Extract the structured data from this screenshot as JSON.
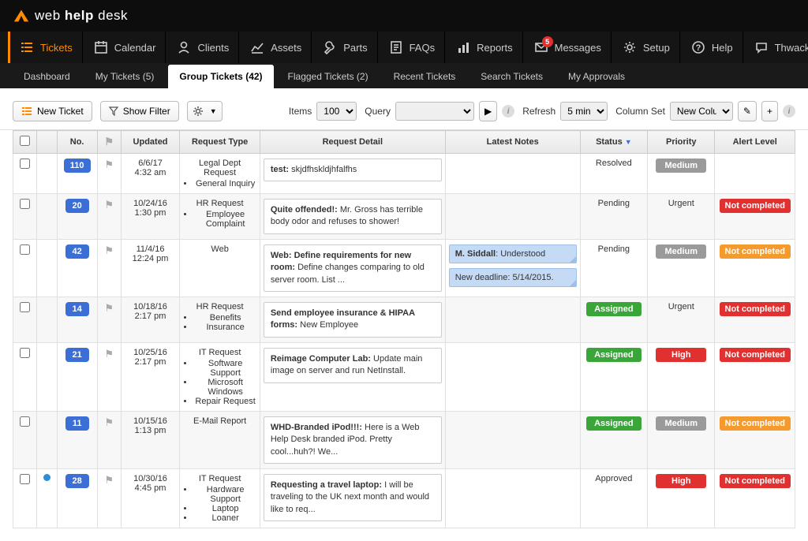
{
  "brand": {
    "name_a": "web",
    "name_b": "help",
    "name_c": "desk"
  },
  "nav": [
    {
      "label": "Tickets",
      "icon": "list",
      "active": true
    },
    {
      "label": "Calendar",
      "icon": "calendar"
    },
    {
      "label": "Clients",
      "icon": "user"
    },
    {
      "label": "Assets",
      "icon": "chart"
    },
    {
      "label": "Parts",
      "icon": "wrench"
    },
    {
      "label": "FAQs",
      "icon": "faq"
    },
    {
      "label": "Reports",
      "icon": "bars"
    },
    {
      "label": "Messages",
      "icon": "mail",
      "badge": "5"
    },
    {
      "label": "Setup",
      "icon": "gear"
    },
    {
      "label": "Help",
      "icon": "help"
    },
    {
      "label": "Thwack",
      "icon": "bubble"
    }
  ],
  "subnav": [
    {
      "label": "Dashboard"
    },
    {
      "label": "My Tickets (5)"
    },
    {
      "label": "Group Tickets (42)",
      "active": true
    },
    {
      "label": "Flagged Tickets (2)"
    },
    {
      "label": "Recent Tickets"
    },
    {
      "label": "Search Tickets"
    },
    {
      "label": "My Approvals"
    }
  ],
  "toolbar": {
    "new_ticket": "New Ticket",
    "show_filter": "Show Filter",
    "items_label": "Items",
    "items_value": "100",
    "query_label": "Query",
    "refresh_label": "Refresh",
    "refresh_value": "5 min",
    "columnset_label": "Column Set",
    "columnset_value": "New Colu"
  },
  "columns": [
    "",
    "",
    "No.",
    "",
    "Updated",
    "Request Type",
    "Request Detail",
    "Latest Notes",
    "Status",
    "Priority",
    "Alert Level"
  ],
  "colors": {
    "assigned": "#3aa63a",
    "medium": "#9a9a9a",
    "high": "#e03030",
    "urgent_text": "#333",
    "notcompleted_red": "#e03030",
    "notcompleted_orange": "#f59b2e"
  },
  "rows": [
    {
      "no": "110",
      "updated_d": "6/6/17",
      "updated_t": "4:32 am",
      "type": "Legal Dept Request",
      "type_items": [
        "General Inquiry"
      ],
      "detail_b": "test:",
      "detail_t": " skjdfhskldjhfalfhs",
      "notes": [],
      "status": "Resolved",
      "status_type": "text",
      "priority": "Medium",
      "priority_color": "#9a9a9a",
      "alert": ""
    },
    {
      "no": "20",
      "updated_d": "10/24/16",
      "updated_t": "1:30 pm",
      "type": "HR Request",
      "type_items": [
        "Employee Complaint"
      ],
      "detail_b": "Quite offended!:",
      "detail_t": " Mr. Gross has terrible body odor and refuses to shower!",
      "notes": [],
      "status": "Pending",
      "status_type": "text",
      "priority": "Urgent",
      "priority_text": true,
      "alert": "Not completed",
      "alert_color": "#e03030"
    },
    {
      "no": "42",
      "updated_d": "11/4/16",
      "updated_t": "12:24 pm",
      "type": "Web",
      "type_items": [],
      "detail_b": "Web: Define requirements for new room:",
      "detail_t": " Define changes comparing to old server room. List ...",
      "notes": [
        {
          "b": "M. Siddall",
          "t": ": Understood"
        },
        {
          "b": "",
          "t": "New deadline: 5/14/2015."
        }
      ],
      "status": "Pending",
      "status_type": "text",
      "priority": "Medium",
      "priority_color": "#9a9a9a",
      "alert": "Not completed",
      "alert_color": "#f59b2e"
    },
    {
      "no": "14",
      "updated_d": "10/18/16",
      "updated_t": "2:17 pm",
      "type": "HR Request",
      "type_items": [
        "Benefits",
        "Insurance"
      ],
      "detail_b": "Send employee insurance & HIPAA forms:",
      "detail_t": " New Employee",
      "notes": [],
      "status": "Assigned",
      "status_type": "pill",
      "status_color": "#3aa63a",
      "priority": "Urgent",
      "priority_text": true,
      "alert": "Not completed",
      "alert_color": "#e03030"
    },
    {
      "no": "21",
      "updated_d": "10/25/16",
      "updated_t": "2:17 pm",
      "type": "IT Request",
      "type_items": [
        "Software Support",
        "Microsoft Windows",
        "Repair Request"
      ],
      "detail_b": "Reimage Computer Lab:",
      "detail_t": " Update main image on server and run NetInstall.",
      "notes": [],
      "status": "Assigned",
      "status_type": "pill",
      "status_color": "#3aa63a",
      "priority": "High",
      "priority_color": "#e03030",
      "alert": "Not completed",
      "alert_color": "#e03030"
    },
    {
      "no": "11",
      "updated_d": "10/15/16",
      "updated_t": "1:13 pm",
      "type": "E-Mail Report",
      "type_items": [],
      "detail_b": "WHD-Branded iPod!!!:",
      "detail_t": " Here is a Web Help Desk branded iPod.  Pretty cool...huh?! We...",
      "notes": [],
      "status": "Assigned",
      "status_type": "pill",
      "status_color": "#3aa63a",
      "priority": "Medium",
      "priority_color": "#9a9a9a",
      "alert": "Not completed",
      "alert_color": "#f59b2e"
    },
    {
      "no": "28",
      "dot": true,
      "updated_d": "10/30/16",
      "updated_t": "4:45 pm",
      "type": "IT Request",
      "type_items": [
        "Hardware Support",
        "Laptop",
        "Loaner"
      ],
      "detail_b": "Requesting a travel laptop:",
      "detail_t": " I will be traveling to the UK next month and would like to req...",
      "notes": [],
      "status": "Approved",
      "status_type": "text",
      "priority": "High",
      "priority_color": "#e03030",
      "alert": "Not completed",
      "alert_color": "#e03030"
    }
  ]
}
